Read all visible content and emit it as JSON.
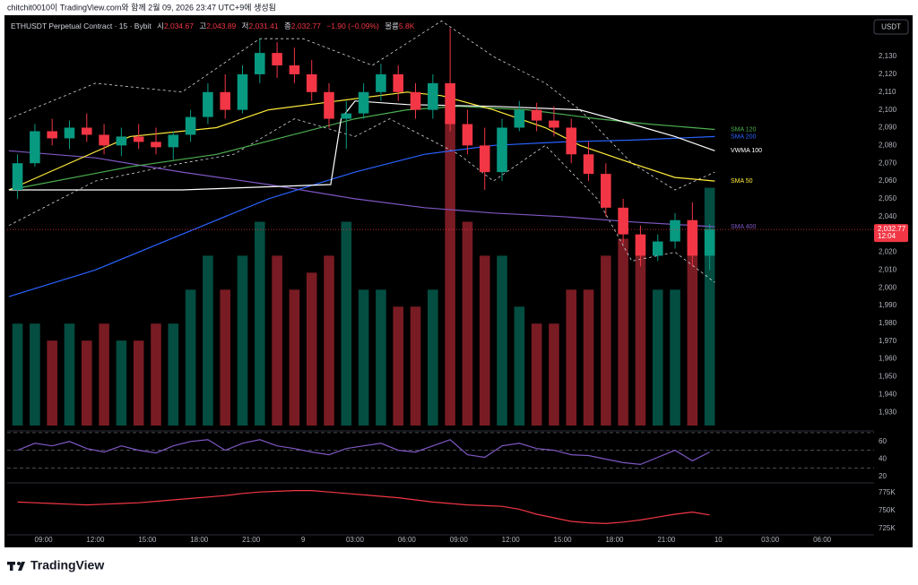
{
  "header": {
    "caption": "chitchit0010이 TradingView.com와 함께 2월 09, 2026 23:47 UTC+9에 생성됨"
  },
  "symbol": {
    "name": "ETHUSDT Perpetual Contract · 15 · Bybit",
    "o_label": "시",
    "o": "2,034.67",
    "h_label": "고",
    "h": "2,043.89",
    "l_label": "저",
    "l": "2,031.41",
    "c_label": "종",
    "c": "2,032.77",
    "change": "−1.90 (−0.09%)",
    "vol_label": "볼륨",
    "vol": "5.8K"
  },
  "currency": "USDT",
  "logo": "TradingView",
  "chart_data": [
    {
      "type": "candlestick",
      "up_color": "#089981",
      "down_color": "#f23645",
      "x": [
        0.5,
        1.5,
        2.5,
        3.5,
        4.5,
        5.5,
        6.5,
        7.5,
        8.5,
        9.5,
        10.5,
        11.5,
        12.5,
        13.5,
        14.5,
        15.5,
        16.5,
        17.5,
        18.5,
        19.5,
        20.5,
        21.5,
        22.5,
        23.5,
        24.5,
        25.5,
        26.5,
        27.5,
        28.5,
        29.5,
        30.5,
        31.5,
        32.5,
        33.5,
        34.5,
        35.5,
        36.5,
        37.5,
        38.5,
        39.5,
        40.5
      ],
      "open": [
        2055,
        2070,
        2088,
        2084,
        2090,
        2086,
        2080,
        2085,
        2082,
        2079,
        2086,
        2096,
        2110,
        2100,
        2120,
        2132,
        2125,
        2120,
        2110,
        2095,
        2098,
        2110,
        2120,
        2110,
        2100,
        2115,
        2092,
        2080,
        2065,
        2090,
        2100,
        2094,
        2090,
        2075,
        2064,
        2045,
        2030,
        2018,
        2026,
        2038,
        2018
      ],
      "high": [
        2075,
        2092,
        2095,
        2094,
        2098,
        2092,
        2090,
        2092,
        2090,
        2088,
        2100,
        2115,
        2120,
        2125,
        2140,
        2138,
        2135,
        2128,
        2115,
        2105,
        2115,
        2126,
        2125,
        2115,
        2120,
        2146,
        2100,
        2090,
        2095,
        2105,
        2104,
        2102,
        2095,
        2082,
        2070,
        2050,
        2035,
        2030,
        2042,
        2048,
        2036
      ],
      "low": [
        2050,
        2068,
        2080,
        2078,
        2082,
        2075,
        2074,
        2078,
        2075,
        2072,
        2082,
        2092,
        2095,
        2098,
        2115,
        2118,
        2115,
        2105,
        2090,
        2078,
        2095,
        2105,
        2105,
        2095,
        2095,
        2088,
        2075,
        2055,
        2060,
        2088,
        2088,
        2085,
        2070,
        2060,
        2040,
        2025,
        2012,
        2015,
        2022,
        2012,
        2010
      ],
      "close": [
        2070,
        2088,
        2084,
        2090,
        2086,
        2080,
        2085,
        2082,
        2079,
        2086,
        2096,
        2110,
        2100,
        2120,
        2132,
        2125,
        2120,
        2110,
        2095,
        2098,
        2110,
        2120,
        2110,
        2100,
        2115,
        2092,
        2080,
        2065,
        2090,
        2100,
        2094,
        2090,
        2075,
        2064,
        2045,
        2030,
        2018,
        2026,
        2038,
        2018,
        2032.77
      ],
      "volume": [
        3,
        3,
        2.5,
        3,
        2.5,
        3,
        2.5,
        2.5,
        3,
        3,
        4,
        5,
        4,
        5,
        6,
        5,
        4,
        4.5,
        5,
        6,
        4,
        4,
        3.5,
        3.5,
        4,
        9,
        6,
        5,
        5,
        3.5,
        3,
        3,
        4,
        4,
        5,
        5.5,
        5,
        4,
        4,
        6,
        7
      ],
      "volume_lim": [
        0,
        12
      ],
      "xlim": [
        -0.1,
        50
      ],
      "ylim": [
        1920,
        2151.7
      ],
      "yticks": [
        {
          "value": 1930,
          "label": "1,930"
        },
        {
          "value": 1940,
          "label": "1,940"
        },
        {
          "value": 1950,
          "label": "1,950"
        },
        {
          "value": 1960,
          "label": "1,960"
        },
        {
          "value": 1970,
          "label": "1,970"
        },
        {
          "value": 1980,
          "label": "1,980"
        },
        {
          "value": 1990,
          "label": "1,990"
        },
        {
          "value": 2000,
          "label": "2,000"
        },
        {
          "value": 2010,
          "label": "2,010"
        },
        {
          "value": 2020,
          "label": "2,020"
        },
        {
          "value": 2030,
          "label": "2,030"
        },
        {
          "value": 2040,
          "label": "2,040"
        },
        {
          "value": 2050,
          "label": "2,050"
        },
        {
          "value": 2060,
          "label": "2,060"
        },
        {
          "value": 2070,
          "label": "2,070"
        },
        {
          "value": 2080,
          "label": "2,080"
        },
        {
          "value": 2090,
          "label": "2,090"
        },
        {
          "value": 2100,
          "label": "2,100"
        },
        {
          "value": 2110,
          "label": "2,110"
        },
        {
          "value": 2120,
          "label": "2,120"
        },
        {
          "value": 2130,
          "label": "2,130"
        }
      ],
      "xticks": [
        {
          "value": 2,
          "label": "09:00"
        },
        {
          "value": 5,
          "label": "12:00"
        },
        {
          "value": 8,
          "label": "15:00"
        },
        {
          "value": 11,
          "label": "18:00"
        },
        {
          "value": 14,
          "label": "21:00"
        },
        {
          "value": 17,
          "label": "9"
        },
        {
          "value": 20,
          "label": "03:00"
        },
        {
          "value": 23,
          "label": "06:00"
        },
        {
          "value": 26,
          "label": "09:00"
        },
        {
          "value": 29,
          "label": "12:00"
        },
        {
          "value": 32,
          "label": "15:00"
        },
        {
          "value": 35,
          "label": "18:00"
        },
        {
          "value": 38,
          "label": "21:00"
        },
        {
          "value": 41,
          "label": "10"
        },
        {
          "value": 44,
          "label": "03:00"
        },
        {
          "value": 47,
          "label": "06:00"
        }
      ],
      "series": [
        {
          "name": "SMA 400",
          "color": "#7e57c2",
          "x": [
            0,
            5,
            10,
            15,
            20,
            24,
            28,
            32,
            36,
            40.8
          ],
          "values": [
            2077,
            2073,
            2065,
            2058,
            2050,
            2045,
            2042,
            2040,
            2037,
            2034.3
          ]
        },
        {
          "name": "SMA 200",
          "color": "#2962ff",
          "x": [
            0,
            5,
            10,
            15,
            20,
            24,
            28,
            32,
            36,
            40.8
          ],
          "values": [
            1995,
            2010,
            2030,
            2050,
            2065,
            2075,
            2080,
            2082,
            2083,
            2085
          ]
        },
        {
          "name": "SMA 120",
          "color": "#4caf50",
          "x": [
            0,
            7,
            12,
            16,
            20,
            23,
            26,
            30,
            34,
            37,
            40.8
          ],
          "values": [
            2055,
            2068,
            2075,
            2085,
            2095,
            2100,
            2102,
            2100,
            2095,
            2092,
            2089
          ]
        },
        {
          "name": "SMA 50",
          "color": "#ffeb3b",
          "x": [
            0,
            7,
            12,
            15,
            19,
            23,
            25,
            28,
            31,
            33,
            36,
            38.5,
            40.8
          ],
          "values": [
            2055,
            2085,
            2090,
            2100,
            2105,
            2110,
            2108,
            2100,
            2090,
            2080,
            2070,
            2062,
            2060
          ]
        },
        {
          "name": "VWMA 100",
          "color": "#ffffff",
          "x": [
            0,
            10,
            18.6,
            19.2,
            20,
            23,
            28,
            33,
            36,
            38.5,
            40.8
          ],
          "values": [
            2055,
            2055,
            2058,
            2095,
            2105,
            2103,
            2102,
            2100,
            2092,
            2085,
            2077
          ]
        }
      ],
      "bands": [
        {
          "color": "#d1d4dc",
          "x": [
            0,
            5,
            10,
            14.5,
            17,
            21,
            25,
            28,
            31,
            33,
            36,
            38.5,
            40.8
          ],
          "values": [
            2095,
            2115,
            2110,
            2140,
            2140,
            2125,
            2150,
            2130,
            2115,
            2100,
            2070,
            2055,
            2065
          ]
        },
        {
          "color": "#d1d4dc",
          "x": [
            0,
            5,
            10,
            13,
            16.5,
            20,
            22,
            26,
            28,
            31,
            34,
            36,
            38.5,
            40.8
          ],
          "values": [
            2035,
            2060,
            2070,
            2075,
            2095,
            2085,
            2095,
            2075,
            2060,
            2080,
            2050,
            2015,
            2020,
            2003
          ]
        }
      ],
      "last_price": {
        "value": 2032.77,
        "label": "2,032.77",
        "countdown": "12:04"
      }
    },
    {
      "type": "line",
      "color": "#7e57c2",
      "ylim": [
        12,
        71
      ],
      "yticks": [
        60,
        40,
        20
      ],
      "levels": [
        70,
        50,
        30
      ],
      "x": [
        0.5,
        1.5,
        2.5,
        3.5,
        4.5,
        5.5,
        6.5,
        7.5,
        8.5,
        9.5,
        10.5,
        11.5,
        12.5,
        13.5,
        14.5,
        15.5,
        16.5,
        17.5,
        18.5,
        19.5,
        20.5,
        21.5,
        22.5,
        23.5,
        24.5,
        25.5,
        26.5,
        27.5,
        28.5,
        29.5,
        30.5,
        31.5,
        32.5,
        33.5,
        34.5,
        35.5,
        36.5,
        37.5,
        38.5,
        39.5,
        40.5
      ],
      "values": [
        50,
        58,
        55,
        60,
        52,
        48,
        55,
        50,
        47,
        55,
        60,
        62,
        50,
        58,
        62,
        55,
        52,
        48,
        45,
        52,
        55,
        58,
        50,
        48,
        55,
        62,
        45,
        42,
        55,
        58,
        52,
        50,
        45,
        44,
        40,
        36,
        34,
        42,
        50,
        38,
        48
      ]
    },
    {
      "type": "line",
      "color": "#f23645",
      "ylim": [
        716250,
        787500
      ],
      "yticks": [
        {
          "value": 775000,
          "label": "775K"
        },
        {
          "value": 750000,
          "label": "750K"
        },
        {
          "value": 725000,
          "label": "725K"
        }
      ],
      "x": [
        0.5,
        1.5,
        2.5,
        3.5,
        4.5,
        5.5,
        6.5,
        7.5,
        8.5,
        9.5,
        10.5,
        11.5,
        12.5,
        13.5,
        14.5,
        15.5,
        16.5,
        17.5,
        18.5,
        19.5,
        20.5,
        21.5,
        22.5,
        23.5,
        24.5,
        25.5,
        26.5,
        27.5,
        28.5,
        29.5,
        30.5,
        31.5,
        32.5,
        33.5,
        34.5,
        35.5,
        36.5,
        37.5,
        38.5,
        39.5,
        40.5
      ],
      "values": [
        762000,
        761000,
        760000,
        759000,
        758000,
        759000,
        760000,
        761000,
        763000,
        765000,
        767000,
        769000,
        771000,
        774000,
        776000,
        777000,
        778000,
        778000,
        776000,
        774000,
        772000,
        770000,
        768000,
        765000,
        762000,
        760000,
        758000,
        757000,
        756000,
        752000,
        745000,
        740000,
        735000,
        733000,
        732000,
        734000,
        737000,
        741000,
        745000,
        748000,
        744000
      ]
    }
  ]
}
